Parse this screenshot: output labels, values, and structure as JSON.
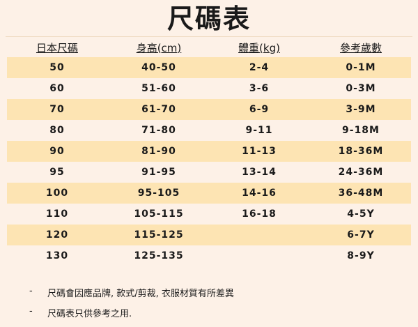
{
  "title": "尺碼表",
  "headers": [
    "日本尺碼",
    "身高(cm)",
    "體重(kg)",
    "參考歲數"
  ],
  "rows": [
    [
      "50",
      "40-50",
      "2-4",
      "0-1M"
    ],
    [
      "60",
      "51-60",
      "3-6",
      "0-3M"
    ],
    [
      "70",
      "61-70",
      "6-9",
      "3-9M"
    ],
    [
      "80",
      "71-80",
      "9-11",
      "9-18M"
    ],
    [
      "90",
      "81-90",
      "11-13",
      "18-36M"
    ],
    [
      "95",
      "91-95",
      "13-14",
      "24-36M"
    ],
    [
      "100",
      "95-105",
      "14-16",
      "36-48M"
    ],
    [
      "110",
      "105-115",
      "16-18",
      "4-5Y"
    ],
    [
      "120",
      "115-125",
      "",
      "6-7Y"
    ],
    [
      "130",
      "125-135",
      "",
      "8-9Y"
    ]
  ],
  "notes": [
    "尺碼會因應品牌, 款式/剪裁, 衣服材質有所差異",
    "尺碼表只供參考之用."
  ],
  "colors": {
    "background": "#fdf1e7",
    "row_highlight": "#fde4b3"
  }
}
